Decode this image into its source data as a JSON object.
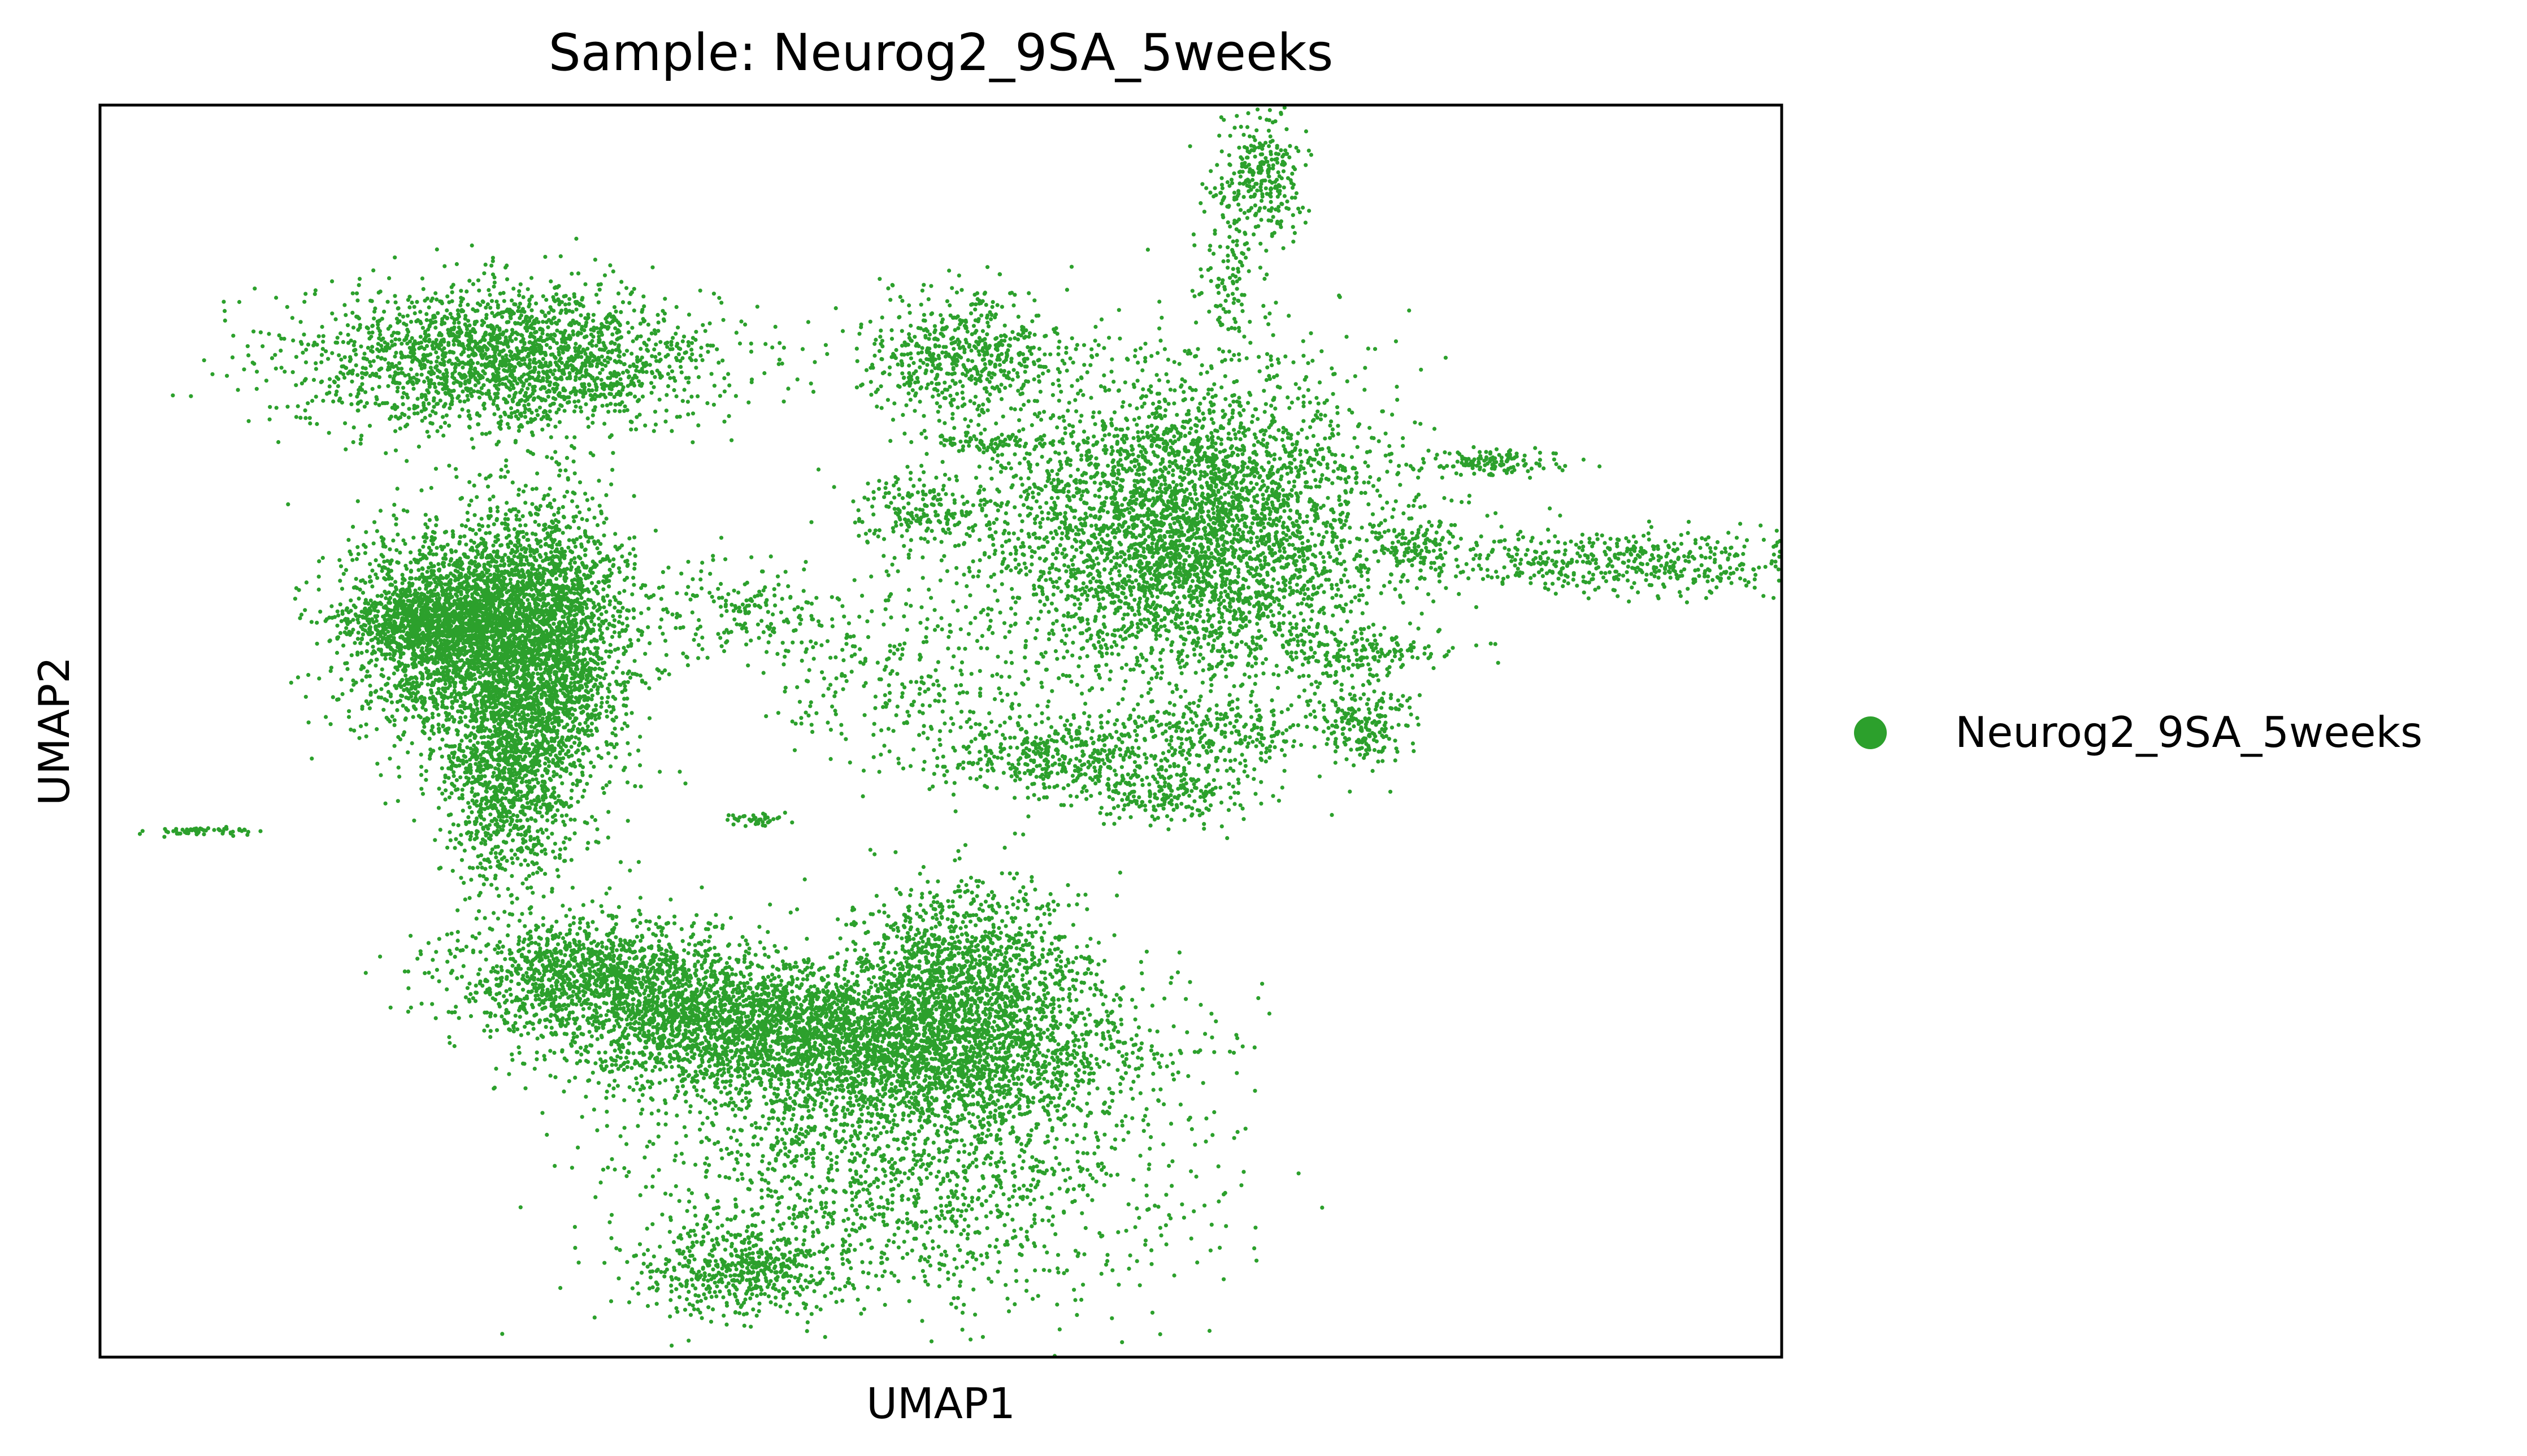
{
  "chart_data": {
    "type": "scatter",
    "title": "Sample: Neurog2_9SA_5weeks",
    "xlabel": "UMAP1",
    "ylabel": "UMAP2",
    "xlim": [
      0,
      100
    ],
    "ylim": [
      0,
      100
    ],
    "xticks": [],
    "yticks": [],
    "grid": false,
    "legend": {
      "placement": "right-outside"
    },
    "point_color": "#2ca02c",
    "series": [
      {
        "name": "Neurog2_9SA_5weeks",
        "color": "#2ca02c",
        "clusters": [
          {
            "cx": 24.2,
            "cy": 79.7,
            "rx": 6.2,
            "ry": 2.9,
            "n": 2200
          },
          {
            "cx": 19.5,
            "cy": 58.9,
            "rx": 2.3,
            "ry": 1.3,
            "n": 700
          },
          {
            "cx": 22.5,
            "cy": 57.8,
            "rx": 3.8,
            "ry": 4.2,
            "n": 3000
          },
          {
            "cx": 26.5,
            "cy": 56.7,
            "rx": 2.5,
            "ry": 6.2,
            "n": 1700
          },
          {
            "cx": 24.0,
            "cy": 45.8,
            "rx": 2.0,
            "ry": 4.5,
            "n": 1000
          },
          {
            "cx": 29.5,
            "cy": 30.5,
            "rx": 4.5,
            "ry": 2.3,
            "n": 1300
          },
          {
            "cx": 38.0,
            "cy": 26.4,
            "rx": 6.0,
            "ry": 2.6,
            "n": 2000
          },
          {
            "cx": 48.5,
            "cy": 24.5,
            "rx": 6.5,
            "ry": 3.2,
            "n": 2700
          },
          {
            "cx": 51.5,
            "cy": 31.5,
            "rx": 3.2,
            "ry": 3.2,
            "n": 1000
          },
          {
            "cx": 48.0,
            "cy": 14.0,
            "rx": 8.0,
            "ry": 5.0,
            "n": 1400
          },
          {
            "cx": 38.0,
            "cy": 7.0,
            "rx": 3.0,
            "ry": 1.8,
            "n": 500
          },
          {
            "cx": 6.0,
            "cy": 42.0,
            "rx": 1.5,
            "ry": 0.2,
            "n": 60
          },
          {
            "cx": 65.0,
            "cy": 66.0,
            "rx": 5.8,
            "ry": 6.2,
            "n": 4200
          },
          {
            "cx": 51.5,
            "cy": 80.0,
            "rx": 3.0,
            "ry": 2.6,
            "n": 600
          },
          {
            "cx": 49.0,
            "cy": 67.5,
            "rx": 2.2,
            "ry": 1.6,
            "n": 200
          },
          {
            "cx": 52.5,
            "cy": 73.0,
            "rx": 2.0,
            "ry": 0.4,
            "n": 80
          },
          {
            "cx": 69.0,
            "cy": 94.0,
            "rx": 1.2,
            "ry": 2.3,
            "n": 300
          },
          {
            "cx": 67.0,
            "cy": 86.0,
            "rx": 1.0,
            "ry": 3.5,
            "n": 100
          },
          {
            "cx": 91.0,
            "cy": 63.5,
            "rx": 6.0,
            "ry": 1.3,
            "n": 500
          },
          {
            "cx": 83.0,
            "cy": 71.5,
            "rx": 2.0,
            "ry": 0.5,
            "n": 130
          },
          {
            "cx": 78.5,
            "cy": 64.5,
            "rx": 1.3,
            "ry": 1.0,
            "n": 90
          },
          {
            "cx": 75.0,
            "cy": 56.5,
            "rx": 2.8,
            "ry": 0.8,
            "n": 140
          },
          {
            "cx": 75.0,
            "cy": 50.5,
            "rx": 1.4,
            "ry": 2.0,
            "n": 200
          },
          {
            "cx": 38.5,
            "cy": 59.5,
            "rx": 3.0,
            "ry": 2.0,
            "n": 200
          },
          {
            "cx": 48.5,
            "cy": 54.0,
            "rx": 5.0,
            "ry": 4.0,
            "n": 300
          },
          {
            "cx": 57.5,
            "cy": 48.0,
            "rx": 4.0,
            "ry": 1.8,
            "n": 500
          },
          {
            "cx": 63.5,
            "cy": 45.0,
            "rx": 2.5,
            "ry": 1.2,
            "n": 200
          },
          {
            "cx": 67.5,
            "cy": 50.0,
            "rx": 3.0,
            "ry": 1.4,
            "n": 200
          },
          {
            "cx": 39.0,
            "cy": 43.0,
            "rx": 1.0,
            "ry": 0.3,
            "n": 40
          }
        ]
      }
    ]
  }
}
